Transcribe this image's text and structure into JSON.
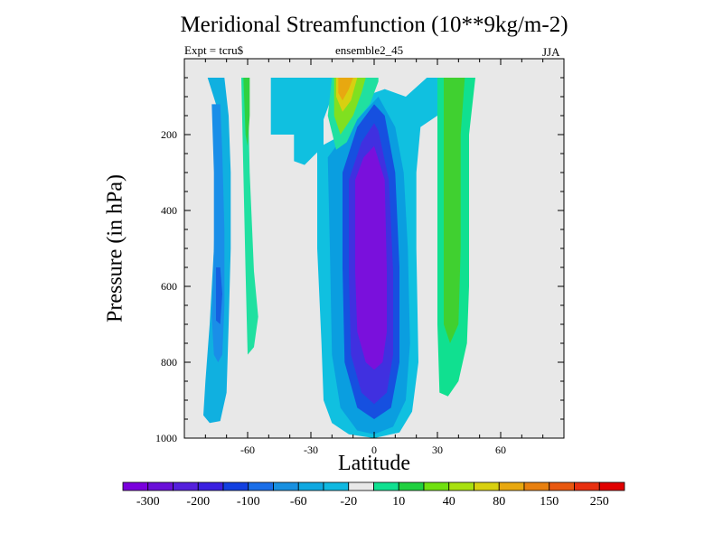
{
  "chart_data": {
    "type": "heatmap",
    "subtype": "filled-contour",
    "title": "Meridional Streamfunction (10**9kg/m-2)",
    "left_label": "Expt = tcru$",
    "center_label": "ensemble2_45",
    "right_label": "JJA",
    "xlabel": "Latitude",
    "ylabel": "Pressure (in hPa)",
    "xlim": [
      -90,
      90
    ],
    "ylim": [
      1000,
      0
    ],
    "y_reversed": true,
    "x_ticks": [
      -60,
      -30,
      0,
      30,
      60
    ],
    "y_ticks": [
      200,
      400,
      600,
      800,
      1000
    ],
    "grid": false,
    "background_fill": "#e8e8e8",
    "contour_levels": [
      "-300",
      "-200",
      "-100",
      "-60",
      "-20",
      "10",
      "40",
      "80",
      "150",
      "250"
    ],
    "palette": [
      "#7a00dc",
      "#6a10d8",
      "#5520dc",
      "#3a20e0",
      "#1240e0",
      "#1a6ee8",
      "#1890e0",
      "#10a8e0",
      "#10b8e0",
      "#e8e8e8",
      "#10e090",
      "#20d040",
      "#70e010",
      "#a8e010",
      "#d8d010",
      "#e8a810",
      "#e88010",
      "#e85810",
      "#e83010",
      "#e00000"
    ],
    "regions": [
      {
        "level": -60,
        "color": "#10b0e0",
        "points": [
          [
            -79,
            50
          ],
          [
            -75,
            120
          ],
          [
            -75,
            300
          ],
          [
            -76,
            500
          ],
          [
            -78,
            700
          ],
          [
            -80,
            850
          ],
          [
            -81,
            940
          ],
          [
            -78,
            960
          ],
          [
            -73,
            955
          ],
          [
            -70,
            880
          ],
          [
            -69,
            700
          ],
          [
            -68,
            500
          ],
          [
            -68,
            300
          ],
          [
            -69,
            150
          ],
          [
            -71,
            50
          ]
        ]
      },
      {
        "level": -100,
        "color": "#1a8ee8",
        "points": [
          [
            -77,
            120
          ],
          [
            -76,
            300
          ],
          [
            -76,
            500
          ],
          [
            -77,
            680
          ],
          [
            -76,
            780
          ],
          [
            -74,
            800
          ],
          [
            -72,
            780
          ],
          [
            -71,
            650
          ],
          [
            -71,
            450
          ],
          [
            -72,
            250
          ],
          [
            -73,
            120
          ]
        ]
      },
      {
        "level": -200,
        "color": "#1560e0",
        "points": [
          [
            -75,
            550
          ],
          [
            -75,
            690
          ],
          [
            -73,
            700
          ],
          [
            -72,
            620
          ],
          [
            -73,
            550
          ]
        ]
      },
      {
        "level": 10,
        "color": "#20e0a0",
        "points": [
          [
            -63,
            50
          ],
          [
            -62,
            300
          ],
          [
            -61,
            560
          ],
          [
            -60,
            780
          ],
          [
            -57,
            760
          ],
          [
            -55,
            680
          ],
          [
            -57,
            560
          ],
          [
            -59,
            300
          ],
          [
            -60,
            50
          ]
        ]
      },
      {
        "level": 40,
        "color": "#30d040",
        "points": [
          [
            -62,
            50
          ],
          [
            -61,
            200
          ],
          [
            -60,
            230
          ],
          [
            -59,
            150
          ],
          [
            -59,
            50
          ]
        ]
      },
      {
        "level": -20,
        "color": "#10c0e0",
        "points": [
          [
            -49,
            50
          ],
          [
            -49,
            200
          ],
          [
            -38,
            200
          ],
          [
            -38,
            270
          ],
          [
            -33,
            280
          ],
          [
            -24,
            230
          ],
          [
            -24,
            160
          ],
          [
            -20,
            100
          ],
          [
            -15,
            50
          ]
        ]
      },
      {
        "level": -20,
        "color": "#10c0e0",
        "points": [
          [
            -27,
            230
          ],
          [
            -27,
            500
          ],
          [
            -25,
            750
          ],
          [
            -24,
            900
          ],
          [
            -20,
            960
          ],
          [
            -12,
            990
          ],
          [
            0,
            1000
          ],
          [
            12,
            985
          ],
          [
            18,
            930
          ],
          [
            21,
            800
          ],
          [
            20,
            500
          ],
          [
            20,
            300
          ],
          [
            22,
            180
          ],
          [
            30,
            150
          ],
          [
            30,
            50
          ],
          [
            25,
            50
          ],
          [
            15,
            100
          ],
          [
            5,
            80
          ],
          [
            -5,
            100
          ],
          [
            -15,
            200
          ],
          [
            -25,
            230
          ]
        ]
      },
      {
        "level": -60,
        "color": "#0a9ee0",
        "points": [
          [
            -22,
            260
          ],
          [
            -21,
            500
          ],
          [
            -20,
            780
          ],
          [
            -16,
            920
          ],
          [
            -8,
            980
          ],
          [
            0,
            990
          ],
          [
            9,
            970
          ],
          [
            15,
            900
          ],
          [
            17,
            750
          ],
          [
            16,
            500
          ],
          [
            14,
            300
          ],
          [
            10,
            180
          ],
          [
            2,
            100
          ],
          [
            -8,
            160
          ],
          [
            -18,
            230
          ]
        ]
      },
      {
        "level": -100,
        "color": "#1650e0",
        "points": [
          [
            -15,
            300
          ],
          [
            -15,
            550
          ],
          [
            -14,
            800
          ],
          [
            -8,
            920
          ],
          [
            0,
            950
          ],
          [
            8,
            920
          ],
          [
            12,
            800
          ],
          [
            12,
            550
          ],
          [
            10,
            300
          ],
          [
            5,
            150
          ],
          [
            0,
            120
          ],
          [
            -8,
            180
          ]
        ]
      },
      {
        "level": -200,
        "color": "#4030e0",
        "points": [
          [
            -12,
            320
          ],
          [
            -12,
            560
          ],
          [
            -11,
            780
          ],
          [
            -6,
            880
          ],
          [
            0,
            910
          ],
          [
            6,
            880
          ],
          [
            9,
            780
          ],
          [
            9,
            560
          ],
          [
            7,
            320
          ],
          [
            2,
            190
          ],
          [
            0,
            170
          ],
          [
            -6,
            220
          ]
        ]
      },
      {
        "level": -300,
        "color": "#7a10dc",
        "points": [
          [
            -9,
            320
          ],
          [
            -9,
            560
          ],
          [
            -8,
            720
          ],
          [
            -4,
            800
          ],
          [
            0,
            820
          ],
          [
            4,
            800
          ],
          [
            6,
            720
          ],
          [
            6,
            560
          ],
          [
            5,
            320
          ],
          [
            0,
            230
          ],
          [
            -5,
            260
          ]
        ]
      },
      {
        "level": 10,
        "color": "#20e0a0",
        "points": [
          [
            -20,
            50
          ],
          [
            -22,
            150
          ],
          [
            -18,
            240
          ],
          [
            -13,
            220
          ],
          [
            -8,
            160
          ],
          [
            -2,
            120
          ],
          [
            2,
            60
          ],
          [
            2,
            50
          ]
        ]
      },
      {
        "level": 40,
        "color": "#80e020",
        "points": [
          [
            -19,
            50
          ],
          [
            -19,
            150
          ],
          [
            -16,
            200
          ],
          [
            -10,
            150
          ],
          [
            -6,
            90
          ],
          [
            -4,
            50
          ]
        ]
      },
      {
        "level": 80,
        "color": "#d8d010",
        "points": [
          [
            -18,
            50
          ],
          [
            -18,
            100
          ],
          [
            -15,
            140
          ],
          [
            -11,
            110
          ],
          [
            -8,
            50
          ]
        ]
      },
      {
        "level": 150,
        "color": "#e8a810",
        "points": [
          [
            -17,
            50
          ],
          [
            -17,
            90
          ],
          [
            -15,
            110
          ],
          [
            -12,
            80
          ],
          [
            -10,
            50
          ]
        ]
      },
      {
        "level": 10,
        "color": "#10e090",
        "points": [
          [
            30,
            50
          ],
          [
            30,
            300
          ],
          [
            30,
            500
          ],
          [
            30,
            700
          ],
          [
            31,
            880
          ],
          [
            35,
            890
          ],
          [
            40,
            850
          ],
          [
            44,
            750
          ],
          [
            45,
            600
          ],
          [
            45,
            400
          ],
          [
            45,
            200
          ],
          [
            48,
            50
          ]
        ]
      },
      {
        "level": 40,
        "color": "#40d030",
        "points": [
          [
            33,
            50
          ],
          [
            33,
            400
          ],
          [
            33,
            700
          ],
          [
            36,
            750
          ],
          [
            40,
            700
          ],
          [
            41,
            500
          ],
          [
            41,
            200
          ],
          [
            43,
            50
          ]
        ]
      }
    ]
  },
  "colorbar": {
    "tick_labels": [
      "-300",
      "-200",
      "-100",
      "-60",
      "-20",
      "10",
      "40",
      "80",
      "150",
      "250"
    ]
  }
}
